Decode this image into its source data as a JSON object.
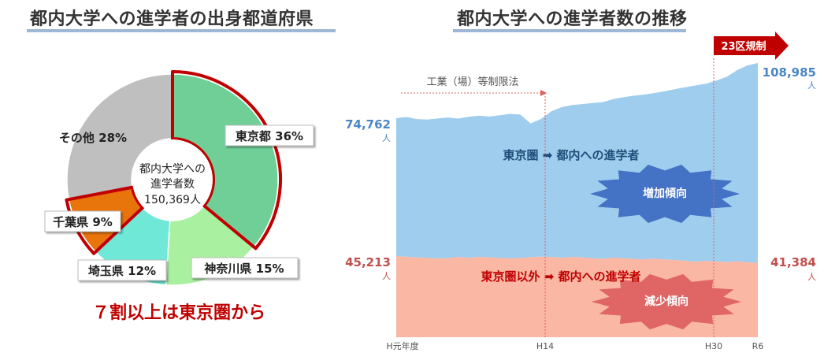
{
  "left_title": "都内大学への進学者の出身都道府県",
  "right_title": "都内大学への進学者数の推移",
  "donut_center": {
    "line1": "都内大学への",
    "line2": "進学者数",
    "line3": "150,369人"
  },
  "highlight_caption": "７割以上は東京圏から",
  "regulation_label": "23区規制",
  "factory_law_label": "工業（場）等制限法",
  "tokyo_area_label": "東京圏 ➡ 都内への進学者",
  "outside_label": "東京圏以外 ➡ 都内への進学者",
  "increase_badge": "増加傾向",
  "decrease_badge": "減少傾向",
  "colors": {
    "tokyo": "#6fcf97",
    "kanagawa": "#a9f0a0",
    "saitama": "#6fe8d8",
    "chiba": "#e8740c",
    "other": "#bfbfbf",
    "highlight": "#c00000",
    "blue_area": "#9ecdee",
    "pink_area": "#f9b7a4",
    "blue_text": "#4a86c5",
    "red_text": "#c0504d",
    "increase": "#4472c4",
    "decrease": "#e06666"
  },
  "chart_data": [
    {
      "type": "pie",
      "title": "都内大学への進学者の出身都道府県",
      "slices": [
        {
          "label": "東京都 36%",
          "value": 36
        },
        {
          "label": "神奈川県 15%",
          "value": 15
        },
        {
          "label": "埼玉県 12%",
          "value": 12
        },
        {
          "label": "千葉県 9%",
          "value": 9
        },
        {
          "label": "その他 28%",
          "value": 28
        }
      ],
      "total": "150,369人"
    },
    {
      "type": "area",
      "title": "都内大学への進学者数の推移",
      "x_ticks": [
        "H元年度",
        "H14",
        "H30",
        "R6"
      ],
      "series": [
        {
          "name": "東京圏以外 ➡ 都内への進学者",
          "start_label": "45,213",
          "end_label": "41,384",
          "unit": "人",
          "values": [
            45213,
            44800,
            44500,
            44200,
            43900,
            44100,
            44700,
            44300,
            44800,
            44500,
            44200,
            44000,
            44100,
            44600,
            44900,
            44700,
            44300,
            44800,
            44500,
            44000,
            43700,
            44300,
            44100,
            43600,
            43400,
            43800,
            43300,
            43000,
            42600,
            42100,
            42500,
            42200,
            41900,
            42300,
            41800,
            41384
          ]
        },
        {
          "name": "東京圏 ➡ 都内への進学者",
          "start_label": "74,762",
          "end_label": "108,985",
          "unit": "人",
          "values": [
            74762,
            75500,
            74200,
            73900,
            74600,
            75200,
            74500,
            75600,
            76300,
            75800,
            76600,
            77400,
            77000,
            71500,
            74200,
            79000,
            81600,
            82900,
            83500,
            84200,
            84700,
            86600,
            87800,
            88700,
            89400,
            90400,
            91500,
            92800,
            94000,
            95100,
            96200,
            98100,
            100500,
            104600,
            107500,
            108985
          ]
        }
      ],
      "annotations": [
        "工業（場）等制限法",
        "23区規制",
        "増加傾向",
        "減少傾向"
      ]
    }
  ]
}
